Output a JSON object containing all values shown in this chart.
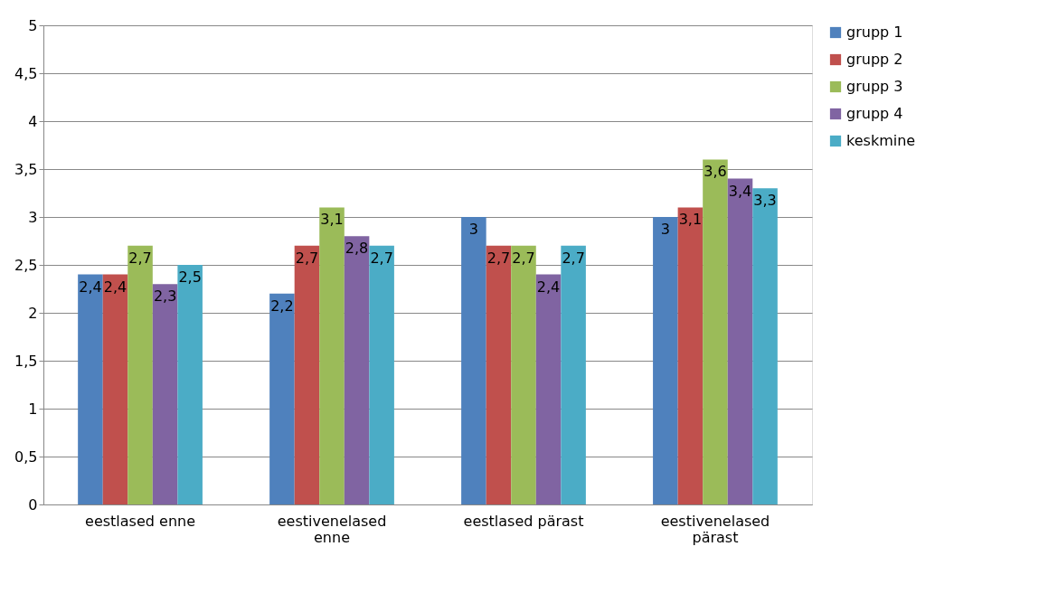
{
  "chart_data": {
    "type": "bar",
    "categories": [
      "eestlased enne",
      "eestivenelased enne",
      "eestlased pärast",
      "eestivenelased pärast"
    ],
    "series": [
      {
        "name": "grupp 1",
        "color": "#4f81bd",
        "values": [
          2.4,
          2.2,
          3,
          3
        ],
        "value_labels": [
          "2,4",
          "2,2",
          "3",
          "3"
        ]
      },
      {
        "name": "grupp 2",
        "color": "#c0504d",
        "values": [
          2.4,
          2.7,
          2.7,
          3.1
        ],
        "value_labels": [
          "2,4",
          "2,7",
          "2,7",
          "3,1"
        ]
      },
      {
        "name": "grupp 3",
        "color": "#9bbb59",
        "values": [
          2.7,
          3.1,
          2.7,
          3.6
        ],
        "value_labels": [
          "2,7",
          "3,1",
          "2,7",
          "3,6"
        ]
      },
      {
        "name": "grupp 4",
        "color": "#8064a2",
        "values": [
          2.3,
          2.8,
          2.4,
          3.4
        ],
        "value_labels": [
          "2,3",
          "2,8",
          "2,4",
          "3,4"
        ]
      },
      {
        "name": "keskmine",
        "color": "#4bacc6",
        "values": [
          2.5,
          2.7,
          2.7,
          3.3
        ],
        "value_labels": [
          "2,5",
          "2,7",
          "2,7",
          "3,3"
        ]
      }
    ],
    "ylim": [
      0,
      5
    ],
    "yticks": [
      0,
      {
        "value": 0.5,
        "label": "0,5"
      },
      1,
      {
        "value": 1.5,
        "label": "1,5"
      },
      2,
      {
        "value": 2.5,
        "label": "2,5"
      },
      3,
      {
        "value": 3.5,
        "label": "3,5"
      },
      4,
      {
        "value": 4.5,
        "label": "4,5"
      },
      5
    ],
    "grid": "y",
    "legend": "right"
  }
}
